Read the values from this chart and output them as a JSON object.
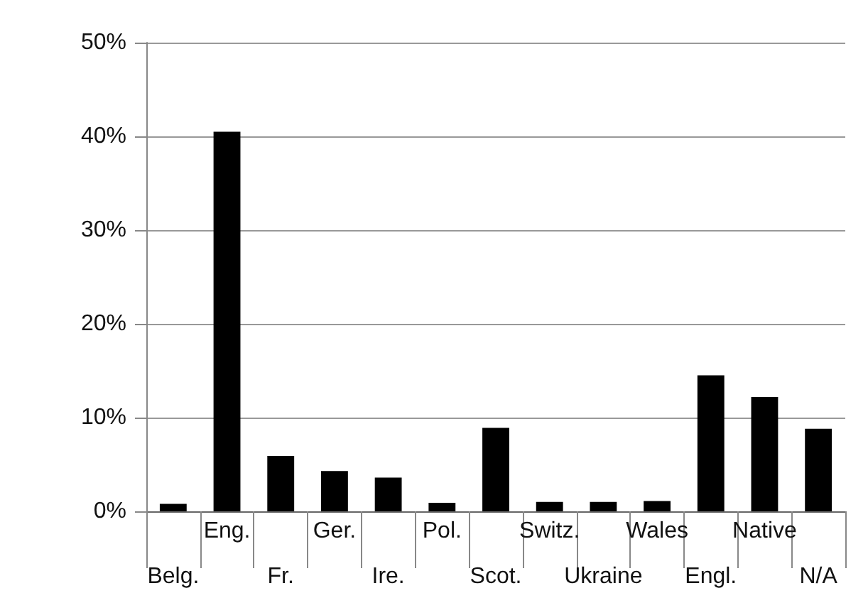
{
  "chart_data": {
    "type": "bar",
    "categories": [
      "Belg.",
      "Eng.",
      "Fr.",
      "Ger.",
      "Ire.",
      "Pol.",
      "Scot.",
      "Switz.",
      "Ukraine",
      "Wales",
      "Engl.",
      "Native",
      "N/A"
    ],
    "values": [
      0.8,
      40.5,
      5.9,
      4.3,
      3.6,
      0.9,
      8.9,
      1,
      1,
      1.1,
      14.5,
      12.2,
      8.8
    ],
    "color": "#000000",
    "ylim": [
      0,
      50
    ],
    "yticks": [
      {
        "value": 0,
        "label": "0%"
      },
      {
        "value": 10,
        "label": "10%"
      },
      {
        "value": 20,
        "label": "20%"
      },
      {
        "value": 30,
        "label": "30%"
      },
      {
        "value": 40,
        "label": "40%"
      },
      {
        "value": 50,
        "label": "50%"
      }
    ],
    "grid": "y"
  }
}
